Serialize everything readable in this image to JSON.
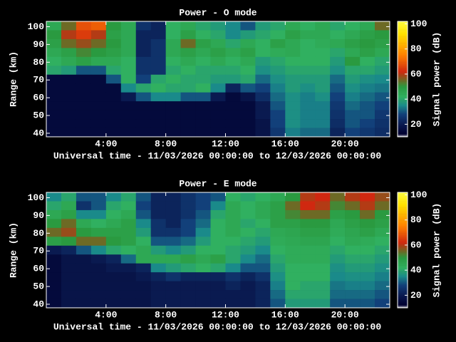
{
  "chart_data": [
    {
      "type": "heatmap",
      "title": "Power - O mode",
      "xlabel": "Universal time - 11/03/2026 00:00:00 to 12/03/2026 00:00:00",
      "ylabel": "Range (km)",
      "colorbar_label": "Signal power (dB)",
      "x_edges": [
        0,
        1,
        2,
        3,
        4,
        5,
        6,
        7,
        8,
        9,
        10,
        11,
        12,
        13,
        14,
        15,
        16,
        17,
        18,
        19,
        20,
        21,
        22,
        23
      ],
      "y_edges": [
        103,
        98,
        93,
        88,
        83,
        78,
        73,
        68,
        63,
        58,
        53,
        48,
        43,
        38
      ],
      "xlim": [
        0,
        23
      ],
      "ylim": [
        38,
        103
      ],
      "clim": [
        10,
        102
      ],
      "xticks": [
        {
          "value": 4,
          "label": "4:00"
        },
        {
          "value": 8,
          "label": "8:00"
        },
        {
          "value": 12,
          "label": "12:00"
        },
        {
          "value": 16,
          "label": "16:00"
        },
        {
          "value": 20,
          "label": "20:00"
        }
      ],
      "yticks": [
        40,
        50,
        60,
        70,
        80,
        90,
        100
      ],
      "cticks": [
        20,
        40,
        60,
        80,
        100
      ],
      "colorscale": [
        [
          10,
          "#f0f0f0"
        ],
        [
          12,
          "#000030"
        ],
        [
          20,
          "#0a1a50"
        ],
        [
          28,
          "#12407a"
        ],
        [
          35,
          "#1a8a8a"
        ],
        [
          42,
          "#30b060"
        ],
        [
          50,
          "#2a9a40"
        ],
        [
          56,
          "#7a6020"
        ],
        [
          62,
          "#d02810"
        ],
        [
          75,
          "#ff8000"
        ],
        [
          92,
          "#ffe000"
        ],
        [
          102,
          "#ffff40"
        ]
      ],
      "z": [
        [
          45,
          55,
          68,
          70,
          50,
          45,
          25,
          22,
          42,
          45,
          40,
          38,
          35,
          30,
          38,
          40,
          45,
          42,
          45,
          40,
          42,
          45,
          55
        ],
        [
          50,
          60,
          65,
          60,
          48,
          45,
          22,
          22,
          42,
          48,
          42,
          40,
          35,
          38,
          40,
          42,
          48,
          45,
          45,
          42,
          45,
          48,
          50
        ],
        [
          48,
          55,
          58,
          55,
          50,
          45,
          22,
          25,
          45,
          55,
          48,
          45,
          40,
          45,
          42,
          48,
          45,
          42,
          44,
          45,
          48,
          50,
          48
        ],
        [
          45,
          48,
          52,
          50,
          48,
          45,
          22,
          25,
          45,
          48,
          45,
          48,
          45,
          48,
          42,
          44,
          45,
          42,
          42,
          40,
          45,
          48,
          45
        ],
        [
          42,
          45,
          48,
          45,
          45,
          42,
          25,
          25,
          42,
          45,
          42,
          45,
          42,
          45,
          38,
          40,
          42,
          42,
          42,
          38,
          50,
          42,
          40
        ],
        [
          40,
          38,
          30,
          30,
          40,
          42,
          25,
          25,
          40,
          42,
          40,
          40,
          40,
          42,
          36,
          38,
          40,
          40,
          40,
          36,
          40,
          40,
          38
        ],
        [
          15,
          15,
          15,
          15,
          30,
          42,
          28,
          40,
          42,
          40,
          40,
          38,
          38,
          40,
          32,
          36,
          38,
          38,
          38,
          32,
          38,
          36,
          35
        ],
        [
          15,
          15,
          15,
          15,
          15,
          35,
          40,
          42,
          40,
          40,
          42,
          35,
          22,
          30,
          28,
          34,
          38,
          36,
          38,
          30,
          36,
          34,
          33
        ],
        [
          15,
          15,
          15,
          15,
          15,
          20,
          30,
          35,
          35,
          30,
          30,
          20,
          15,
          18,
          24,
          32,
          36,
          34,
          36,
          28,
          34,
          32,
          30
        ],
        [
          15,
          15,
          15,
          15,
          15,
          15,
          15,
          15,
          15,
          15,
          15,
          15,
          15,
          15,
          20,
          30,
          36,
          34,
          34,
          26,
          32,
          30,
          28
        ],
        [
          15,
          15,
          15,
          15,
          15,
          15,
          15,
          15,
          15,
          15,
          15,
          15,
          15,
          15,
          20,
          28,
          36,
          34,
          34,
          25,
          30,
          30,
          26
        ],
        [
          15,
          15,
          15,
          15,
          15,
          15,
          15,
          15,
          15,
          15,
          15,
          15,
          15,
          15,
          18,
          28,
          36,
          34,
          34,
          24,
          30,
          28,
          25
        ],
        [
          15,
          15,
          15,
          15,
          15,
          15,
          15,
          15,
          15,
          15,
          15,
          15,
          15,
          15,
          18,
          26,
          34,
          32,
          32,
          22,
          28,
          26,
          24
        ]
      ]
    },
    {
      "type": "heatmap",
      "title": "Power - E mode",
      "xlabel": "Universal time - 11/03/2026 00:00:00 to 12/03/2026 00:00:00",
      "ylabel": "Range (km)",
      "colorbar_label": "Signal power (dB)",
      "x_edges": [
        0,
        1,
        2,
        3,
        4,
        5,
        6,
        7,
        8,
        9,
        10,
        11,
        12,
        13,
        14,
        15,
        16,
        17,
        18,
        19,
        20,
        21,
        22,
        23
      ],
      "y_edges": [
        103,
        98,
        93,
        88,
        83,
        78,
        73,
        68,
        63,
        58,
        53,
        48,
        43,
        38
      ],
      "xlim": [
        0,
        23
      ],
      "ylim": [
        38,
        103
      ],
      "clim": [
        10,
        102
      ],
      "xticks": [
        {
          "value": 4,
          "label": "4:00"
        },
        {
          "value": 8,
          "label": "8:00"
        },
        {
          "value": 12,
          "label": "12:00"
        },
        {
          "value": 16,
          "label": "16:00"
        },
        {
          "value": 20,
          "label": "20:00"
        }
      ],
      "yticks": [
        40,
        50,
        60,
        70,
        80,
        90,
        100
      ],
      "cticks": [
        20,
        40,
        60,
        80,
        100
      ],
      "colorscale": [
        [
          10,
          "#f0f0f0"
        ],
        [
          12,
          "#000030"
        ],
        [
          20,
          "#0a1a50"
        ],
        [
          28,
          "#12407a"
        ],
        [
          35,
          "#1a8a8a"
        ],
        [
          42,
          "#30b060"
        ],
        [
          50,
          "#2a9a40"
        ],
        [
          56,
          "#7a6020"
        ],
        [
          62,
          "#d02810"
        ],
        [
          75,
          "#ff8000"
        ],
        [
          92,
          "#ffe000"
        ],
        [
          102,
          "#ffff40"
        ]
      ],
      "z": [
        [
          35,
          40,
          30,
          30,
          35,
          40,
          30,
          22,
          22,
          25,
          28,
          30,
          42,
          40,
          42,
          45,
          50,
          60,
          62,
          55,
          60,
          62,
          58
        ],
        [
          40,
          45,
          25,
          30,
          40,
          42,
          28,
          22,
          22,
          25,
          28,
          35,
          45,
          42,
          45,
          48,
          55,
          62,
          60,
          52,
          55,
          60,
          55
        ],
        [
          45,
          48,
          35,
          35,
          42,
          45,
          30,
          22,
          22,
          25,
          30,
          40,
          45,
          42,
          45,
          48,
          52,
          55,
          55,
          48,
          50,
          55,
          50
        ],
        [
          50,
          55,
          45,
          42,
          45,
          48,
          35,
          25,
          22,
          28,
          32,
          42,
          45,
          40,
          42,
          48,
          48,
          50,
          50,
          45,
          48,
          50,
          48
        ],
        [
          55,
          58,
          50,
          48,
          48,
          48,
          38,
          25,
          25,
          28,
          35,
          42,
          45,
          42,
          40,
          45,
          46,
          48,
          48,
          44,
          46,
          48,
          45
        ],
        [
          48,
          50,
          55,
          55,
          50,
          48,
          42,
          30,
          30,
          32,
          38,
          42,
          42,
          40,
          38,
          44,
          45,
          46,
          46,
          42,
          45,
          44,
          42
        ],
        [
          20,
          22,
          30,
          35,
          40,
          42,
          45,
          38,
          35,
          38,
          42,
          42,
          40,
          38,
          35,
          42,
          44,
          44,
          44,
          40,
          42,
          42,
          40
        ],
        [
          15,
          18,
          18,
          20,
          22,
          32,
          45,
          45,
          45,
          48,
          45,
          48,
          40,
          35,
          32,
          40,
          44,
          44,
          44,
          38,
          40,
          40,
          38
        ],
        [
          15,
          18,
          18,
          18,
          20,
          20,
          22,
          35,
          38,
          40,
          42,
          40,
          35,
          30,
          30,
          38,
          42,
          42,
          42,
          36,
          38,
          38,
          36
        ],
        [
          15,
          18,
          18,
          18,
          18,
          18,
          20,
          22,
          25,
          22,
          22,
          22,
          25,
          22,
          25,
          36,
          42,
          42,
          42,
          35,
          36,
          36,
          34
        ],
        [
          15,
          18,
          18,
          18,
          18,
          18,
          18,
          20,
          20,
          20,
          20,
          20,
          22,
          20,
          22,
          34,
          42,
          40,
          40,
          33,
          34,
          34,
          32
        ],
        [
          15,
          18,
          18,
          18,
          18,
          18,
          18,
          20,
          20,
          20,
          20,
          20,
          20,
          20,
          22,
          32,
          40,
          40,
          40,
          32,
          32,
          32,
          30
        ],
        [
          15,
          18,
          18,
          18,
          18,
          18,
          18,
          20,
          20,
          20,
          20,
          20,
          20,
          20,
          22,
          30,
          38,
          38,
          38,
          30,
          30,
          30,
          28
        ]
      ]
    }
  ]
}
